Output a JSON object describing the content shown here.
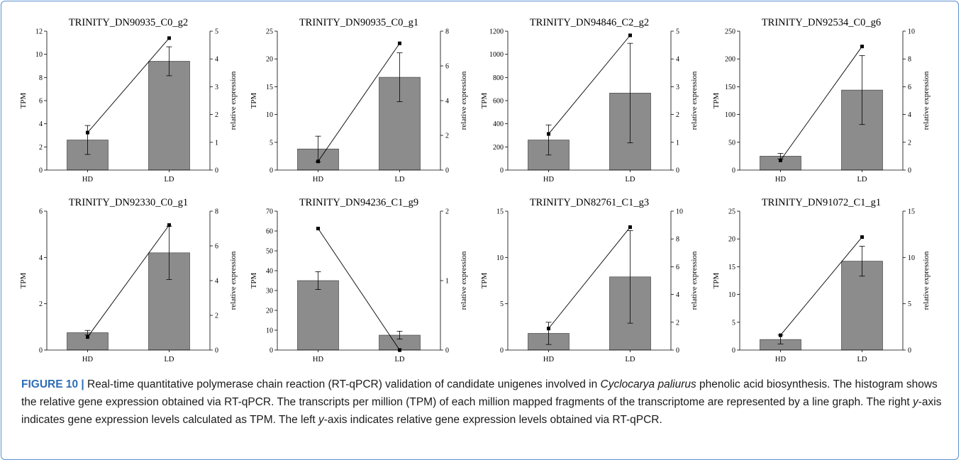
{
  "chart_data": [
    {
      "type": "bar",
      "title": "TRINITY_DN90935_C0_g2",
      "categories": [
        "HD",
        "LD"
      ],
      "series": [
        {
          "kind": "bar",
          "values": [
            2.6,
            9.4
          ],
          "err": [
            1.25,
            1.25
          ]
        },
        {
          "kind": "line",
          "values": [
            1.35,
            4.75
          ]
        }
      ],
      "ylabel": "TPM",
      "y2label": "relative expression",
      "ylim": [
        0,
        12
      ],
      "yticks": [
        0,
        2,
        4,
        6,
        8,
        10,
        12
      ],
      "y2lim": [
        0,
        5
      ],
      "y2ticks": [
        0,
        1,
        2,
        3,
        4,
        5
      ]
    },
    {
      "type": "bar",
      "title": "TRINITY_DN90935_C0_g1",
      "categories": [
        "HD",
        "LD"
      ],
      "series": [
        {
          "kind": "bar",
          "values": [
            3.8,
            16.7
          ],
          "err": [
            2.3,
            4.4
          ]
        },
        {
          "kind": "line",
          "values": [
            0.5,
            7.3
          ]
        }
      ],
      "ylabel": "TPM",
      "y2label": "relative expression",
      "ylim": [
        0,
        25
      ],
      "yticks": [
        0,
        5,
        10,
        15,
        20,
        25
      ],
      "y2lim": [
        0,
        8
      ],
      "y2ticks": [
        0,
        2,
        4,
        6,
        8
      ]
    },
    {
      "type": "bar",
      "title": "TRINITY_DN94846_C2_g2",
      "categories": [
        "HD",
        "LD"
      ],
      "series": [
        {
          "kind": "bar",
          "values": [
            260,
            665
          ],
          "err": [
            130,
            430
          ]
        },
        {
          "kind": "line",
          "values": [
            1.3,
            4.85
          ]
        }
      ],
      "ylabel": "TPM",
      "y2label": "relative expression",
      "ylim": [
        0,
        1200
      ],
      "yticks": [
        0,
        200,
        400,
        600,
        800,
        1000,
        1200
      ],
      "y2lim": [
        0,
        5
      ],
      "y2ticks": [
        0,
        1,
        2,
        3,
        4,
        5
      ]
    },
    {
      "type": "bar",
      "title": "TRINITY_DN92534_C0_g6",
      "categories": [
        "HD",
        "LD"
      ],
      "series": [
        {
          "kind": "bar",
          "values": [
            25,
            144
          ],
          "err": [
            5,
            62
          ]
        },
        {
          "kind": "line",
          "values": [
            0.7,
            8.9
          ]
        }
      ],
      "ylabel": "TPM",
      "y2label": "relative expression",
      "ylim": [
        0,
        250
      ],
      "yticks": [
        0,
        50,
        100,
        150,
        200,
        250
      ],
      "y2lim": [
        0,
        10
      ],
      "y2ticks": [
        0,
        2,
        4,
        6,
        8,
        10
      ]
    },
    {
      "type": "bar",
      "title": "TRINITY_DN92330_C0_g1",
      "categories": [
        "HD",
        "LD"
      ],
      "series": [
        {
          "kind": "bar",
          "values": [
            0.75,
            4.2
          ],
          "err": [
            0.1,
            1.15
          ]
        },
        {
          "kind": "line",
          "values": [
            0.75,
            7.2
          ]
        }
      ],
      "ylabel": "TPM",
      "y2label": "relative expression",
      "ylim": [
        0,
        6
      ],
      "yticks": [
        0,
        2,
        4,
        6
      ],
      "y2lim": [
        0,
        8
      ],
      "y2ticks": [
        0,
        2,
        4,
        6,
        8
      ]
    },
    {
      "type": "bar",
      "title": "TRINITY_DN94236_C1_g9",
      "categories": [
        "HD",
        "LD"
      ],
      "series": [
        {
          "kind": "bar",
          "values": [
            35,
            7.5
          ],
          "err": [
            4.5,
            2
          ]
        },
        {
          "kind": "line",
          "values": [
            1.75,
            0
          ]
        }
      ],
      "ylabel": "TPM",
      "y2label": "relative expression",
      "ylim": [
        0,
        70
      ],
      "yticks": [
        0,
        10,
        20,
        30,
        40,
        50,
        60,
        70
      ],
      "y2lim": [
        0,
        2
      ],
      "y2ticks": [
        0,
        1,
        2
      ]
    },
    {
      "type": "bar",
      "title": "TRINITY_DN82761_C1_g3",
      "categories": [
        "HD",
        "LD"
      ],
      "series": [
        {
          "kind": "bar",
          "values": [
            1.8,
            7.9
          ],
          "err": [
            1.2,
            5
          ]
        },
        {
          "kind": "line",
          "values": [
            1.55,
            8.85
          ]
        }
      ],
      "ylabel": "TPM",
      "y2label": "relative expression",
      "ylim": [
        0,
        15
      ],
      "yticks": [
        0,
        5,
        10,
        15
      ],
      "y2lim": [
        0,
        10
      ],
      "y2ticks": [
        0,
        2,
        4,
        6,
        8,
        10
      ]
    },
    {
      "type": "bar",
      "title": "TRINITY_DN91072_C1_g1",
      "categories": [
        "HD",
        "LD"
      ],
      "series": [
        {
          "kind": "bar",
          "values": [
            1.9,
            16
          ],
          "err": [
            0.8,
            2.7
          ]
        },
        {
          "kind": "line",
          "values": [
            1.6,
            12.2
          ]
        }
      ],
      "ylabel": "TPM",
      "y2label": "relative expression",
      "ylim": [
        0,
        25
      ],
      "yticks": [
        0,
        5,
        10,
        15,
        20,
        25
      ],
      "y2lim": [
        0,
        15
      ],
      "y2ticks": [
        0,
        5,
        10,
        15
      ]
    }
  ],
  "colors": {
    "bar": "#8c8c8c",
    "line": "#000000",
    "frame_border": "#5a8fcf",
    "figure_label": "#2d6db5"
  },
  "caption": {
    "label": "FIGURE 10 |",
    "part1": " Real-time quantitative polymerase chain reaction (RT-qPCR) validation of candidate unigenes involved in ",
    "species": "Cyclocarya paliurus",
    "part2": " phenolic acid biosynthesis. The histogram shows the relative gene expression obtained via RT-qPCR. The transcripts per million (TPM) of each million mapped fragments of the transcriptome are represented by a line graph. The right ",
    "y1": "y",
    "part3": "-axis indicates gene expression levels calculated as TPM. The left ",
    "y2": "y",
    "part4": "-axis indicates relative gene expression levels obtained via RT-qPCR."
  }
}
